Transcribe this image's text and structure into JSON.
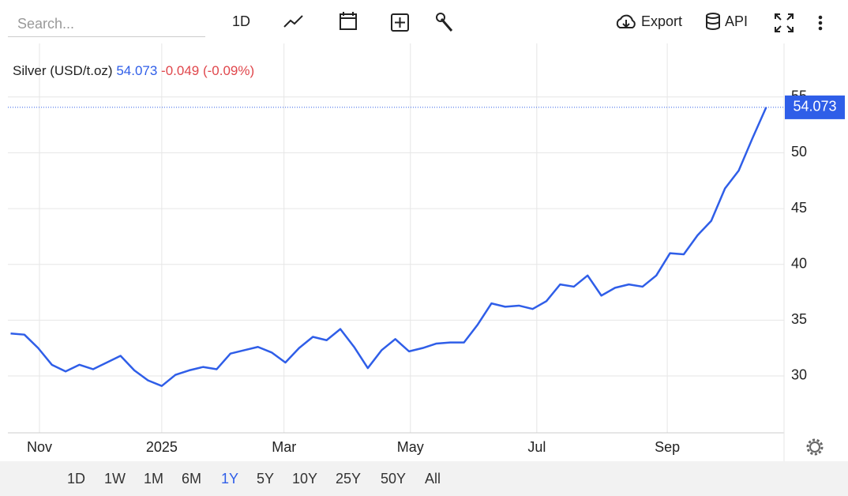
{
  "toolbar": {
    "search_placeholder": "Search...",
    "interval": "1D",
    "export": "Export",
    "api": "API"
  },
  "chart_data": {
    "type": "line",
    "change": "-0.049 (-0.09%)",
    "series": [
      {
        "name": "Silver (USD/t.oz)",
        "color": "#2f5ee8",
        "values": [
          33.8,
          33.7,
          32.5,
          31.0,
          30.4,
          31.0,
          30.6,
          31.2,
          31.8,
          30.5,
          29.6,
          29.1,
          30.1,
          30.5,
          30.8,
          30.6,
          32.0,
          32.3,
          32.6,
          32.1,
          31.2,
          32.5,
          33.5,
          33.2,
          34.2,
          32.6,
          30.7,
          32.3,
          33.3,
          32.2,
          32.5,
          32.9,
          33.0,
          33.0,
          34.6,
          36.5,
          36.2,
          36.3,
          36.0,
          36.7,
          38.2,
          38.0,
          39.0,
          37.2,
          37.9,
          38.2,
          38.0,
          39.0,
          41.0,
          40.9,
          42.6,
          43.9,
          46.8,
          48.4,
          51.3,
          54.073
        ]
      }
    ],
    "xlim": [
      -0.2,
      56.3
    ],
    "xticks": [
      {
        "value": 2.1,
        "label": "Nov"
      },
      {
        "value": 11.0,
        "label": "2025"
      },
      {
        "value": 19.9,
        "label": "Mar"
      },
      {
        "value": 29.1,
        "label": "May"
      },
      {
        "value": 38.3,
        "label": "Jul"
      },
      {
        "value": 47.8,
        "label": "Sep"
      }
    ],
    "ylim": [
      24.9,
      59.8
    ],
    "yticks": [
      30,
      35,
      40,
      45,
      50,
      55
    ],
    "grid": true
  },
  "ranges": {
    "options": [
      "1D",
      "1W",
      "1M",
      "6M",
      "1Y",
      "5Y",
      "10Y",
      "25Y",
      "50Y",
      "All"
    ],
    "active": 4
  }
}
